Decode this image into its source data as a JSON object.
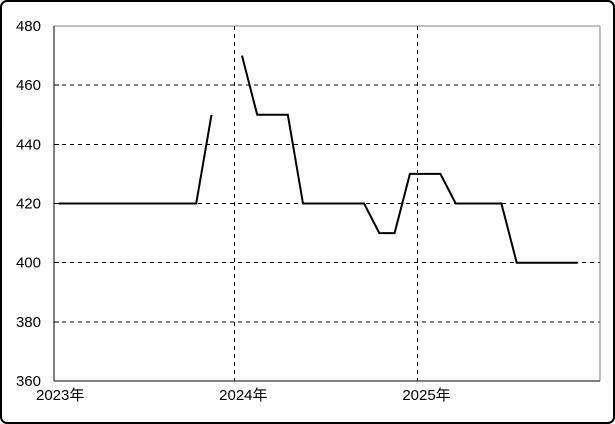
{
  "window": {
    "background": "#ffffff",
    "border_color": "#000000"
  },
  "chart_data": {
    "type": "line",
    "title": "",
    "xlabel": "",
    "ylabel": "",
    "ylim": [
      360,
      480
    ],
    "y_ticks": [
      480,
      460,
      440,
      420,
      400,
      380,
      360
    ],
    "y_gridline_values": [
      460,
      440,
      420,
      400,
      380
    ],
    "x_year_labels": [
      "2023年",
      "2024年",
      "2025年"
    ],
    "x_gridline_years": [
      "2024",
      "2025"
    ],
    "grid": "dashed",
    "legend": "none",
    "line_color": "#000000",
    "gridline_color": "#000000",
    "axis_color": "#000000",
    "frame_top_right_color": "#808080",
    "note": "monthly series, gap (missing value) at 2023-12",
    "months": [
      "2023-01",
      "2023-02",
      "2023-03",
      "2023-04",
      "2023-05",
      "2023-06",
      "2023-07",
      "2023-08",
      "2023-09",
      "2023-10",
      "2023-11",
      "2023-12",
      "2024-01",
      "2024-02",
      "2024-03",
      "2024-04",
      "2024-05",
      "2024-06",
      "2024-07",
      "2024-08",
      "2024-09",
      "2024-10",
      "2024-11",
      "2024-12",
      "2025-01",
      "2025-02",
      "2025-03",
      "2025-04",
      "2025-05",
      "2025-06",
      "2025-07",
      "2025-08",
      "2025-09",
      "2025-10",
      "2025-11"
    ],
    "values": [
      420,
      420,
      420,
      420,
      420,
      420,
      420,
      420,
      420,
      420,
      450,
      null,
      470,
      450,
      450,
      450,
      420,
      420,
      420,
      420,
      420,
      410,
      410,
      430,
      430,
      430,
      420,
      420,
      420,
      420,
      400,
      400,
      400,
      400,
      400
    ]
  }
}
